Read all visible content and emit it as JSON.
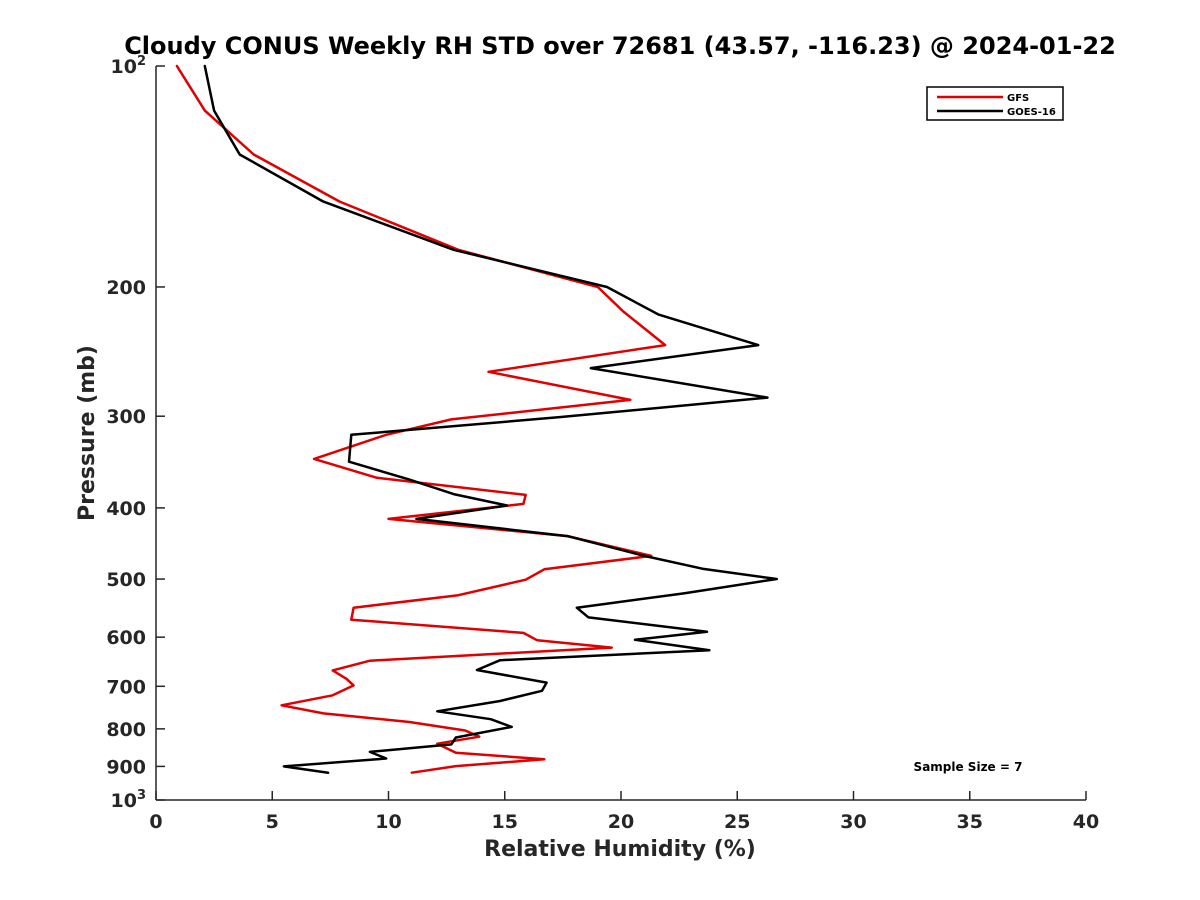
{
  "chart_data": {
    "type": "line",
    "title": "Cloudy CONUS Weekly RH STD over 72681 (43.57, -116.23) @ 2024-01-22",
    "xlabel": "Relative Humidity (%)",
    "ylabel": "Pressure (mb)",
    "xlim": [
      0,
      40
    ],
    "ylim": [
      100,
      1000
    ],
    "y_scale": "log",
    "y_reversed": true,
    "x_ticks": [
      "0",
      "5",
      "10",
      "15",
      "20",
      "25",
      "30",
      "35",
      "40"
    ],
    "y_ticks": [
      {
        "value": 100,
        "base": "10",
        "exp": "2"
      },
      {
        "value": 200,
        "label": "200"
      },
      {
        "value": 300,
        "label": "300"
      },
      {
        "value": 400,
        "label": "400"
      },
      {
        "value": 500,
        "label": "500"
      },
      {
        "value": 600,
        "label": "600"
      },
      {
        "value": 700,
        "label": "700"
      },
      {
        "value": 800,
        "label": "800"
      },
      {
        "value": 900,
        "label": "900"
      },
      {
        "value": 1000,
        "base": "10",
        "exp": "3"
      }
    ],
    "grid": false,
    "legend_position": "top-right",
    "annotation": "Sample Size = 7",
    "series": [
      {
        "name": "GFS",
        "color": "#e00000",
        "points": [
          [
            0.9,
            100
          ],
          [
            2.1,
            115
          ],
          [
            4.2,
            132
          ],
          [
            7.9,
            153
          ],
          [
            13.0,
            178
          ],
          [
            19.0,
            200
          ],
          [
            20.1,
            216
          ],
          [
            21.9,
            240
          ],
          [
            14.3,
            261
          ],
          [
            20.4,
            285
          ],
          [
            12.7,
            303
          ],
          [
            9.9,
            318
          ],
          [
            6.8,
            343
          ],
          [
            9.5,
            364
          ],
          [
            15.9,
            384
          ],
          [
            15.8,
            395
          ],
          [
            10.0,
            414
          ],
          [
            17.7,
            437
          ],
          [
            21.3,
            465
          ],
          [
            16.7,
            485
          ],
          [
            15.9,
            501
          ],
          [
            13.0,
            526
          ],
          [
            8.5,
            547
          ],
          [
            8.4,
            568
          ],
          [
            15.8,
            592
          ],
          [
            16.4,
            606
          ],
          [
            19.6,
            620
          ],
          [
            9.2,
            646
          ],
          [
            7.6,
            666
          ],
          [
            8.2,
            684
          ],
          [
            8.5,
            698
          ],
          [
            7.6,
            720
          ],
          [
            5.4,
            743
          ],
          [
            7.2,
            762
          ],
          [
            10.9,
            783
          ],
          [
            13.3,
            804
          ],
          [
            13.9,
            820
          ],
          [
            12.1,
            838
          ],
          [
            12.9,
            862
          ],
          [
            16.7,
            880
          ],
          [
            12.9,
            899
          ],
          [
            11.0,
            918
          ]
        ]
      },
      {
        "name": "GOES-16",
        "color": "#000000",
        "points": [
          [
            2.1,
            100
          ],
          [
            2.5,
            115
          ],
          [
            3.6,
            132
          ],
          [
            7.2,
            153
          ],
          [
            12.8,
            178
          ],
          [
            19.4,
            200
          ],
          [
            21.6,
            218
          ],
          [
            25.9,
            240
          ],
          [
            18.7,
            258
          ],
          [
            26.3,
            283
          ],
          [
            17.3,
            301
          ],
          [
            8.4,
            318
          ],
          [
            8.3,
            346
          ],
          [
            10.9,
            366
          ],
          [
            12.8,
            383
          ],
          [
            15.1,
            397
          ],
          [
            11.2,
            414
          ],
          [
            17.7,
            437
          ],
          [
            21.0,
            465
          ],
          [
            23.5,
            484
          ],
          [
            26.7,
            500
          ],
          [
            22.7,
            523
          ],
          [
            18.1,
            547
          ],
          [
            18.6,
            564
          ],
          [
            23.7,
            590
          ],
          [
            20.6,
            605
          ],
          [
            23.8,
            625
          ],
          [
            14.8,
            645
          ],
          [
            13.8,
            665
          ],
          [
            16.8,
            692
          ],
          [
            16.6,
            710
          ],
          [
            14.8,
            733
          ],
          [
            12.1,
            757
          ],
          [
            14.4,
            776
          ],
          [
            15.3,
            795
          ],
          [
            12.9,
            822
          ],
          [
            12.7,
            840
          ],
          [
            9.2,
            860
          ],
          [
            9.9,
            878
          ],
          [
            5.5,
            900
          ],
          [
            7.4,
            918
          ]
        ]
      }
    ]
  }
}
